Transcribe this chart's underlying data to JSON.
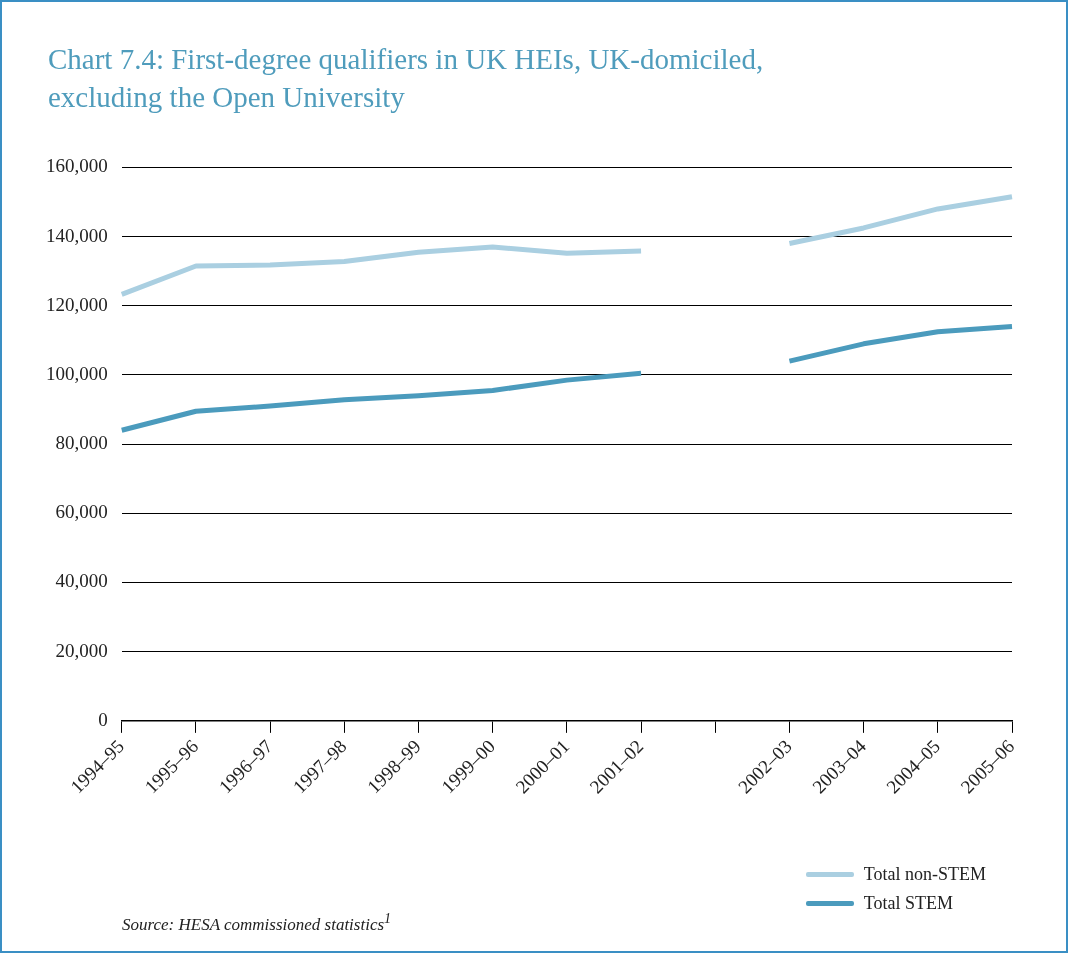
{
  "chart_data": {
    "type": "line",
    "title": "Chart 7.4: First-degree qualifiers in UK HEIs, UK-domiciled, excluding the Open University",
    "categories": [
      "1994–95",
      "1995–96",
      "1996–97",
      "1997–98",
      "1998–99",
      "1999–00",
      "2000–01",
      "2001–02",
      null,
      "2002–03",
      "2003–04",
      "2004–05",
      "2005–06"
    ],
    "series": [
      {
        "name": "Total non-STEM",
        "color": "#aacfe1",
        "values": [
          123300,
          131500,
          131800,
          132800,
          135500,
          137000,
          135200,
          135800,
          null,
          138000,
          142500,
          148000,
          151500
        ]
      },
      {
        "name": "Total STEM",
        "color": "#4b9bbd",
        "values": [
          84000,
          89500,
          91000,
          92800,
          94000,
          95500,
          98500,
          100500,
          null,
          104000,
          109000,
          112500,
          114000
        ]
      }
    ],
    "ylim": [
      0,
      160000
    ],
    "yticks": [
      0,
      {
        "value": 20000,
        "label": "20,000"
      },
      {
        "value": 40000,
        "label": "40,000"
      },
      {
        "value": 60000,
        "label": "60,000"
      },
      {
        "value": 80000,
        "label": "80,000"
      },
      {
        "value": 100000,
        "label": "100,000"
      },
      {
        "value": 120000,
        "label": "120,000"
      },
      {
        "value": 140000,
        "label": "140,000"
      },
      {
        "value": 160000,
        "label": "160,000"
      }
    ],
    "grid": "y",
    "legend": "bottom right",
    "marker": "none",
    "line_style": "solid",
    "annotations": [
      "Source: HESA commissioned statistics$^{1}$"
    ]
  }
}
